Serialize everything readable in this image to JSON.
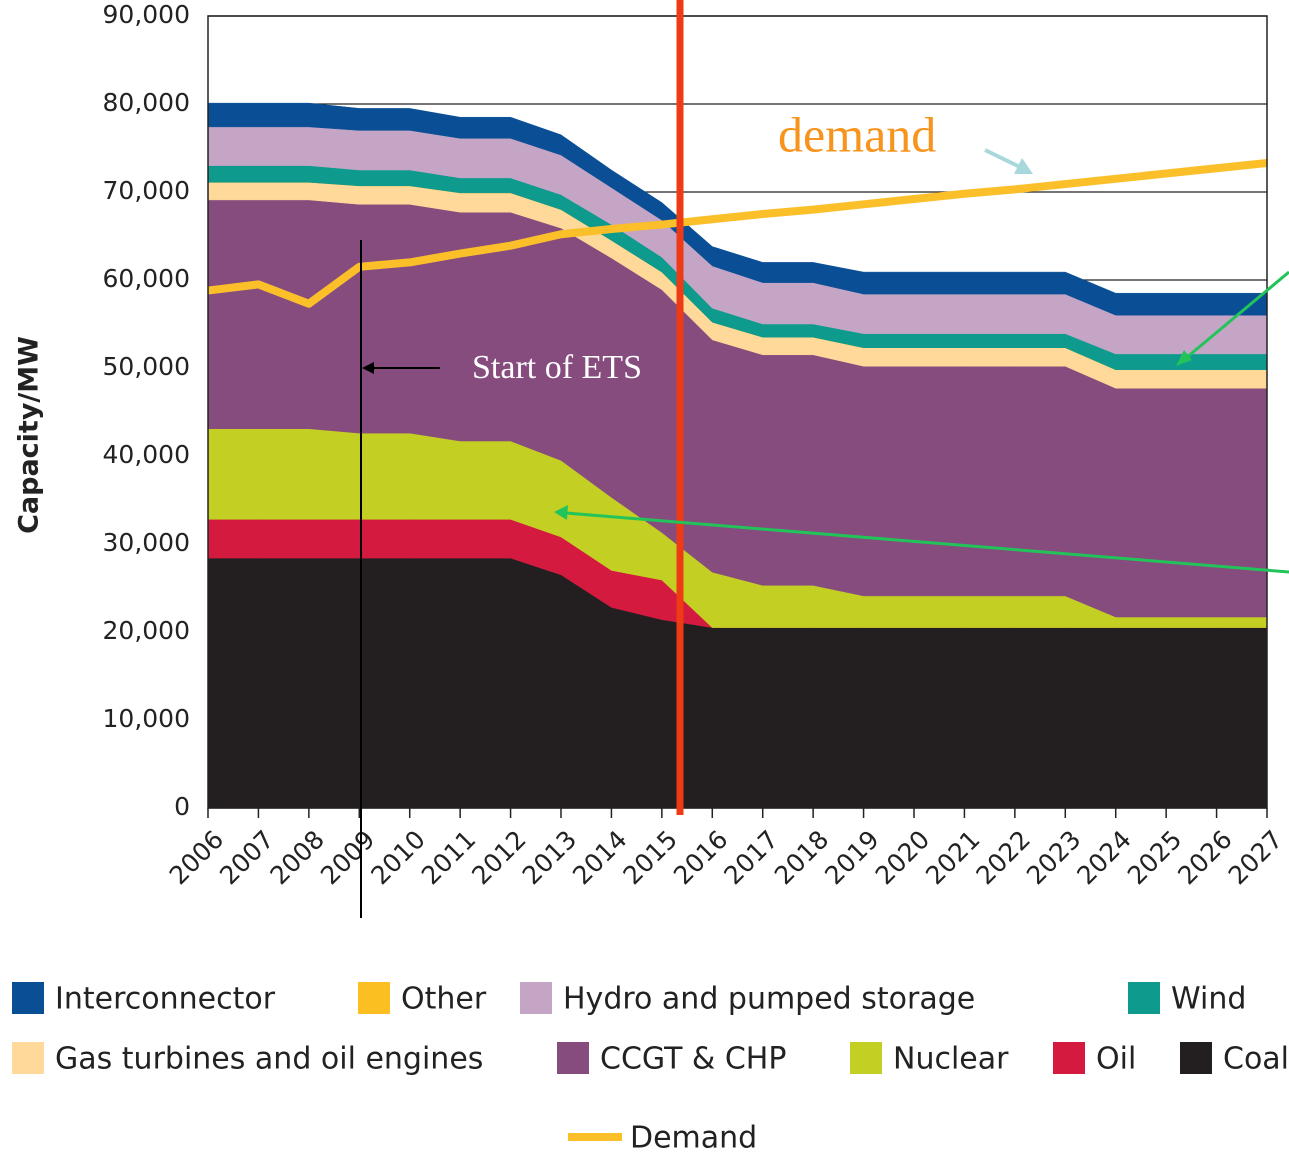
{
  "chart_data": {
    "type": "stacked_area",
    "y_label": "Capacity/MW",
    "categories": [
      "2006",
      "2007",
      "2008",
      "2009",
      "2010",
      "2011",
      "2012",
      "2013",
      "2014",
      "2015",
      "2016",
      "2017",
      "2018",
      "2019",
      "2020",
      "2021",
      "2022",
      "2023",
      "2024",
      "2025",
      "2026",
      "2027"
    ],
    "series": [
      {
        "name": "Coal",
        "color": "#231f20",
        "values": [
          28400,
          28400,
          28400,
          28400,
          28400,
          28400,
          28400,
          26500,
          22800,
          21400,
          20500,
          20500,
          20500,
          20500,
          20500,
          20500,
          20500,
          20500,
          20500,
          20500,
          20500,
          20500
        ]
      },
      {
        "name": "Oil",
        "color": "#d41a3f",
        "values": [
          4400,
          4400,
          4400,
          4400,
          4400,
          4400,
          4400,
          4300,
          4200,
          4500,
          0,
          0,
          0,
          0,
          0,
          0,
          0,
          0,
          0,
          0,
          0,
          0
        ]
      },
      {
        "name": "Nuclear",
        "color": "#c3cf22",
        "values": [
          10300,
          10300,
          10300,
          9800,
          9800,
          8900,
          8900,
          8700,
          8300,
          5400,
          6300,
          4800,
          4800,
          3600,
          3600,
          3600,
          3600,
          3600,
          1200,
          1200,
          1200,
          1200
        ]
      },
      {
        "name": "CCGT & CHP",
        "color": "#864c7e",
        "values": [
          26000,
          26000,
          26000,
          26000,
          26000,
          26000,
          26000,
          26400,
          27200,
          27600,
          26400,
          26200,
          26200,
          26100,
          26100,
          26100,
          26100,
          26100,
          26000,
          26000,
          26000,
          26000
        ]
      },
      {
        "name": "Gas turbines and oil engines",
        "color": "#fed99a",
        "values": [
          2000,
          2000,
          2000,
          2100,
          2100,
          2200,
          2200,
          2100,
          2000,
          2000,
          2000,
          2000,
          2000,
          2100,
          2100,
          2100,
          2100,
          2100,
          2100,
          2100,
          2100,
          2100
        ]
      },
      {
        "name": "Other",
        "color": "#fbbf22",
        "values": [
          0,
          0,
          0,
          0,
          0,
          0,
          0,
          0,
          0,
          0,
          0,
          0,
          0,
          0,
          0,
          0,
          0,
          0,
          0,
          0,
          0,
          0
        ]
      },
      {
        "name": "Wind",
        "color": "#0f9a8e",
        "values": [
          1900,
          1900,
          1900,
          1800,
          1800,
          1700,
          1700,
          1700,
          1800,
          1700,
          1600,
          1500,
          1500,
          1600,
          1600,
          1600,
          1600,
          1600,
          1800,
          1800,
          1800,
          1800
        ]
      },
      {
        "name": "Hydro and pumped storage",
        "color": "#c4a5c6",
        "values": [
          4400,
          4400,
          4400,
          4500,
          4500,
          4500,
          4500,
          4500,
          4200,
          4200,
          4800,
          4700,
          4700,
          4500,
          4500,
          4500,
          4500,
          4500,
          4400,
          4400,
          4400,
          4400
        ]
      },
      {
        "name": "Interconnector",
        "color": "#0a4f96",
        "values": [
          2700,
          2700,
          2700,
          2500,
          2500,
          2400,
          2400,
          2300,
          2000,
          2000,
          2200,
          2300,
          2300,
          2500,
          2500,
          2500,
          2500,
          2500,
          2500,
          2500,
          2500,
          2500
        ]
      }
    ],
    "demand": {
      "name": "Demand",
      "color": "#fbbf2a",
      "values": [
        58800,
        59500,
        57300,
        61500,
        62000,
        63000,
        63900,
        65200,
        65800,
        66300,
        66900,
        67500,
        68000,
        68600,
        69200,
        69800,
        70300,
        70900,
        71500,
        72100,
        72700,
        73300
      ]
    },
    "ylim": [
      0,
      90000
    ],
    "yticks": [
      {
        "value": 0,
        "label": "0"
      },
      {
        "value": 10000,
        "label": "10,000"
      },
      {
        "value": 20000,
        "label": "20,000"
      },
      {
        "value": 30000,
        "label": "30,000"
      },
      {
        "value": 40000,
        "label": "40,000"
      },
      {
        "value": 50000,
        "label": "50,000"
      },
      {
        "value": 60000,
        "label": "60,000"
      },
      {
        "value": 70000,
        "label": "70,000"
      },
      {
        "value": 80000,
        "label": "80,000"
      },
      {
        "value": 90000,
        "label": "90,000"
      }
    ],
    "grid": true,
    "annotations": [
      "demand",
      "Start of ETS"
    ]
  }
}
